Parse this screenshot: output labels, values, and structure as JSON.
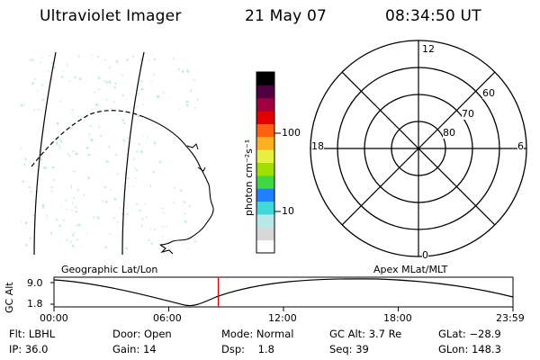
{
  "header": {
    "instrument": "Ultraviolet Imager",
    "date": "21 May 07",
    "time": "08:34:50 UT"
  },
  "colorbar": {
    "unit_label": "photon cm⁻²s⁻¹",
    "ticks": [
      "100",
      "10"
    ],
    "colors": [
      "#ffffff",
      "#d8d8d8",
      "#b8e8e8",
      "#40d8d8",
      "#2080ff",
      "#40d840",
      "#a0e000",
      "#e8f040",
      "#ffb020",
      "#ff6010",
      "#e00000",
      "#a00040",
      "#500040",
      "#000000"
    ]
  },
  "polar": {
    "mlt_labels": {
      "top": "12",
      "bottom": "0",
      "left": "18",
      "right": "6"
    },
    "lat_labels": [
      "60",
      "70",
      "80"
    ]
  },
  "timeline": {
    "ylabel": "GC Alt",
    "yticks": [
      "9.0",
      "1.8"
    ],
    "left_label": "Geographic Lat/Lon",
    "right_label": "Apex MLat/MLT",
    "xticks": [
      "00:00",
      "06:00",
      "12:00",
      "18:00",
      "23:59"
    ],
    "current_time_fraction": 0.358
  },
  "info": {
    "row1": [
      "Flt: LBHL",
      "Door: Open",
      "Mode: Normal",
      "GC Alt: 3.7 Re",
      "GLat: −28.9"
    ],
    "row2": [
      "IP: 36.0",
      "Gain: 14",
      "Dsp:    1.8",
      "Seq: 39",
      "GLon: 148.3"
    ]
  }
}
